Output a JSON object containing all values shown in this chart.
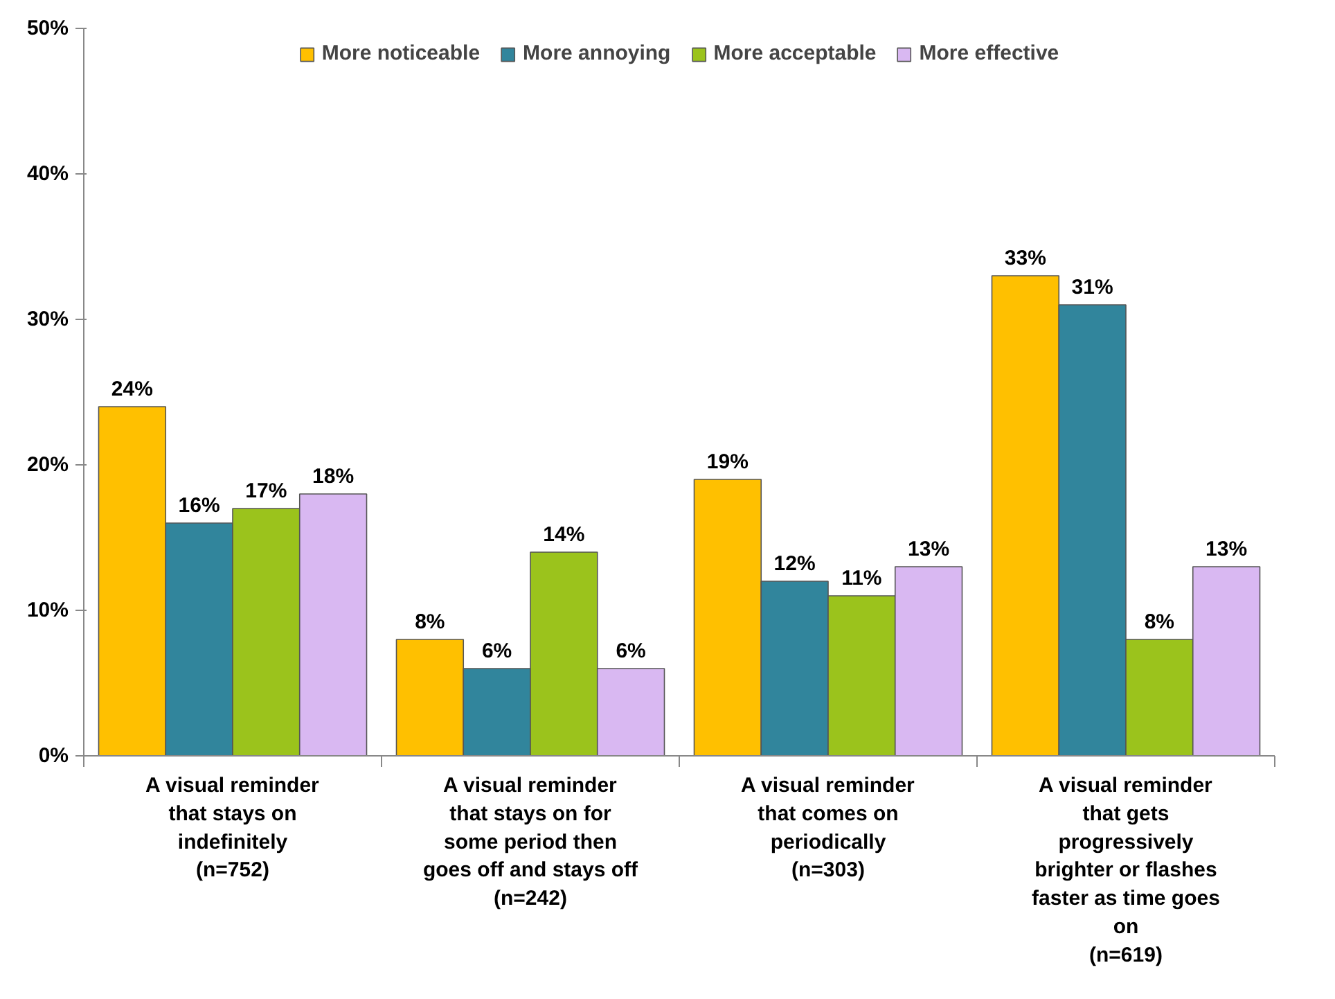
{
  "chart_data": {
    "type": "bar",
    "categories": [
      "A visual reminder\nthat stays on\nindefinitely\n(n=752)",
      "A visual reminder\nthat stays on for\nsome period then\ngoes off and stays off\n(n=242)",
      "A visual reminder\nthat comes on\nperiodically\n(n=303)",
      "A visual reminder\nthat gets\nprogressively\nbrighter or flashes\nfaster as time goes\non\n(n=619)"
    ],
    "series": [
      {
        "name": "More noticeable",
        "color": "#ffc000",
        "values": [
          24,
          8,
          19,
          33
        ],
        "value_labels": [
          "24%",
          "8%",
          "19%",
          "33%"
        ]
      },
      {
        "name": "More annoying",
        "color": "#31859c",
        "values": [
          16,
          6,
          12,
          31
        ],
        "value_labels": [
          "16%",
          "6%",
          "12%",
          "31%"
        ]
      },
      {
        "name": "More acceptable",
        "color": "#9bc31c",
        "values": [
          17,
          14,
          11,
          8
        ],
        "value_labels": [
          "17%",
          "14%",
          "11%",
          "8%"
        ]
      },
      {
        "name": "More effective",
        "color": "#d9b8f2",
        "values": [
          18,
          6,
          13,
          13
        ],
        "value_labels": [
          "18%",
          "6%",
          "13%",
          "13%"
        ]
      }
    ],
    "ylim": [
      0,
      50
    ],
    "yticks": [
      {
        "value": 0,
        "label": "0%"
      },
      {
        "value": 10,
        "label": "10%"
      },
      {
        "value": 20,
        "label": "20%"
      },
      {
        "value": 30,
        "label": "30%"
      },
      {
        "value": 40,
        "label": "40%"
      },
      {
        "value": 50,
        "label": "50%"
      }
    ],
    "grid": false,
    "legend": "top"
  }
}
